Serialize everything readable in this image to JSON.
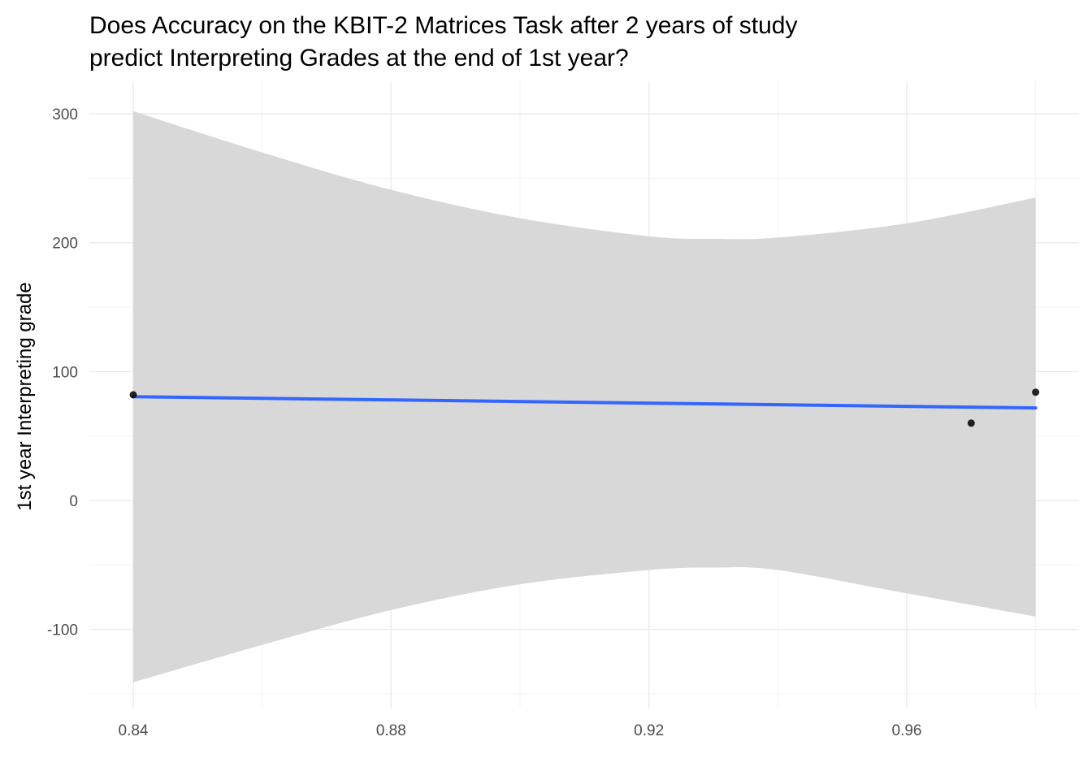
{
  "chart_data": {
    "type": "scatter",
    "title": "Does Accuracy on the KBIT-2 Matrices Task after 2 years of study predict Interpreting Grades at the end of 1st year?",
    "title_lines": [
      "Does Accuracy on the KBIT-2 Matrices Task after 2 years of study",
      "predict Interpreting Grades at the end of 1st year?"
    ],
    "xlabel": "",
    "ylabel": "1st year Interpreting grade",
    "xlim": [
      0.8343,
      0.98
    ],
    "ylim": [
      -150,
      302
    ],
    "x_ticks": [
      0.84,
      0.88,
      0.92,
      0.96
    ],
    "x_tick_labels": [
      "0.84",
      "0.88",
      "0.92",
      "0.96"
    ],
    "y_ticks": [
      -100,
      0,
      100,
      200,
      300
    ],
    "y_tick_labels": [
      "-100",
      "0",
      "100",
      "200",
      "300"
    ],
    "grid": true,
    "legend": "none",
    "points": {
      "x": [
        0.84,
        0.97,
        0.98
      ],
      "y": [
        82,
        60,
        84
      ]
    },
    "fit_line": {
      "x": [
        0.84,
        0.98
      ],
      "y": [
        80.5,
        71.8
      ],
      "color": "#3366ff"
    },
    "confidence_band": {
      "x": [
        0.84,
        0.86,
        0.88,
        0.9,
        0.92,
        0.93,
        0.94,
        0.96,
        0.98
      ],
      "upper": [
        302,
        270,
        241,
        219,
        205,
        203,
        204,
        215,
        235
      ],
      "lower": [
        -141,
        -112,
        -85,
        -65,
        -54,
        -52,
        -54,
        -72,
        -90
      ],
      "color": "#d6d6d6"
    },
    "point_color": "#000000"
  }
}
